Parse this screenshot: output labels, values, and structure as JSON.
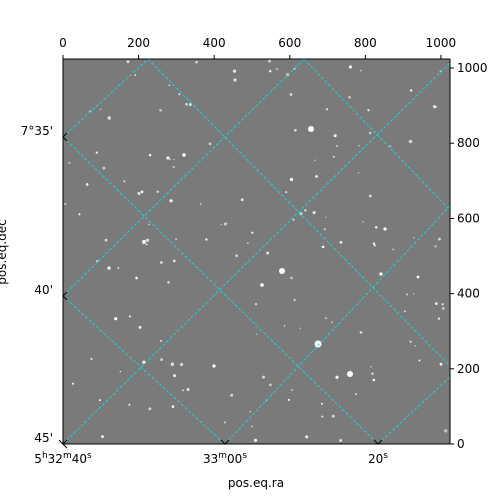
{
  "chart_data": {
    "type": "image",
    "xlabel": "pos.eq.ra",
    "ylabel": "pos.eq.dec",
    "pixel_axes": {
      "x_range": [
        0,
        1024
      ],
      "y_range": [
        0,
        1024
      ],
      "x_ticks": [
        "0",
        "200",
        "400",
        "600",
        "800",
        "1000"
      ],
      "y_ticks": [
        "0",
        "200",
        "400",
        "600",
        "800",
        "1000"
      ]
    },
    "ra_ticks": [
      {
        "label_main": "5",
        "sup1": "h",
        "mid": "32",
        "sup2": "m",
        "tail": "40",
        "sup3": "s"
      },
      {
        "label_main": "",
        "sup1": "",
        "mid": "33",
        "sup2": "m",
        "tail": "00",
        "sup3": "s"
      },
      {
        "label_main": "",
        "sup1": "",
        "mid": "",
        "sup2": "",
        "tail": "20",
        "sup3": "s"
      }
    ],
    "dec_ticks": [
      "7°35'",
      "40'",
      "45'"
    ],
    "grid": true,
    "grid_color": "#00e5e5",
    "image_background": "#7a7a7a"
  }
}
